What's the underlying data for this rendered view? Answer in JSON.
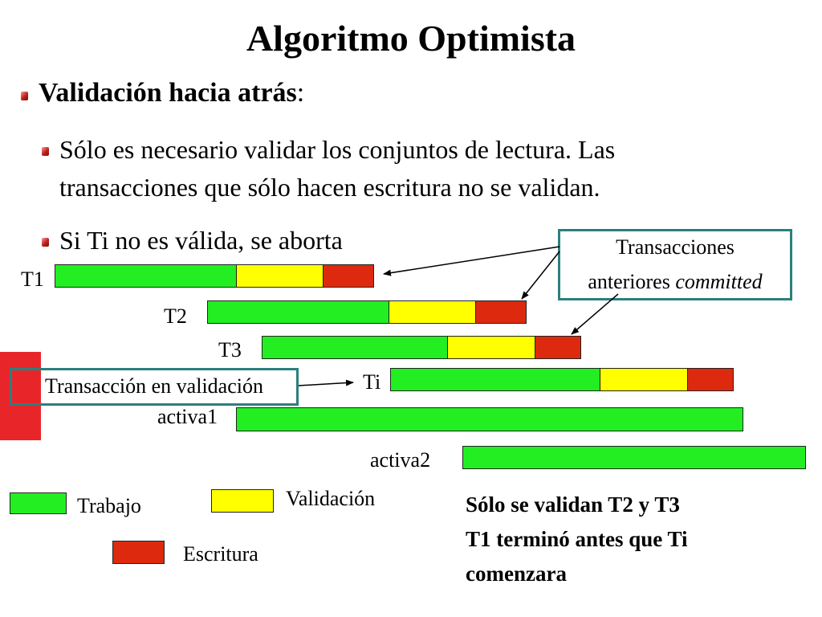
{
  "title": "Algoritmo Optimista",
  "heading": {
    "text": "Validación hacia atrás",
    "colon": ":"
  },
  "bullets": [
    {
      "line1": "Sólo es necesario validar los conjuntos de lectura. Las",
      "line2": "transacciones que sólo hacen escritura no se validan."
    },
    {
      "line1": "Si Ti no es válida, se aborta"
    }
  ],
  "rows": {
    "t1": "T1",
    "t2": "T2",
    "t3": "T3",
    "ti": "Ti",
    "activa1": "activa1",
    "activa2": "activa2"
  },
  "callouts": {
    "committed_line1": "Transacciones",
    "committed_line2_prefix": "anteriores ",
    "committed_line2_italic": "committed",
    "validating": "Transacción en validación"
  },
  "legend": {
    "trabajo": "Trabajo",
    "validacion": "Validación",
    "escritura": "Escritura"
  },
  "notes": {
    "line1": "Sólo se validan T2 y T3",
    "line2": "T1 terminó antes que Ti",
    "line3": "comenzara"
  },
  "colors": {
    "trabajo": "#22ee22",
    "validacion": "#ffff00",
    "escritura": "#dd2a0e",
    "callout_border": "#2b7f7f",
    "side_marker": "#e8262a"
  }
}
